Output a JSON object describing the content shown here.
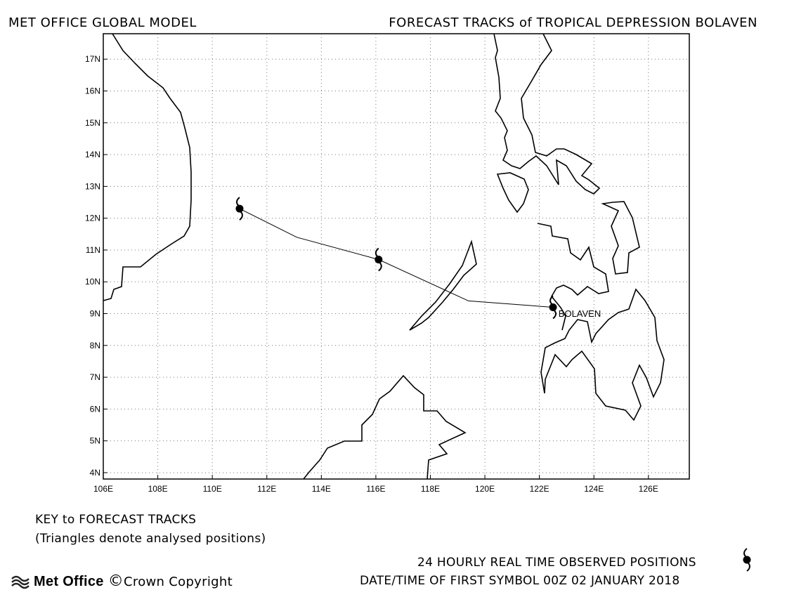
{
  "header": {
    "left": "MET OFFICE GLOBAL MODEL",
    "right": "FORECAST TRACKS of TROPICAL DEPRESSION BOLAVEN"
  },
  "footer": {
    "key_title": "KEY to FORECAST TRACKS",
    "key_note": "(Triangles denote analysed positions)",
    "observed_label": "24 HOURLY REAL TIME OBSERVED POSITIONS",
    "date_label": "DATE/TIME OF FIRST SYMBOL 00Z 02 JANUARY 2018",
    "logo_text": "Met Office",
    "copyright_symbol": "©",
    "copyright_text": "Crown Copyright"
  },
  "chart_data": {
    "type": "line",
    "xlim": [
      106,
      127.5
    ],
    "ylim": [
      3.8,
      17.8
    ],
    "x_ticks": [
      106,
      108,
      110,
      112,
      114,
      116,
      118,
      120,
      122,
      124,
      126
    ],
    "y_ticks": [
      4,
      5,
      6,
      7,
      8,
      9,
      10,
      11,
      12,
      13,
      14,
      15,
      16,
      17
    ],
    "x_tick_labels": [
      "106E",
      "108E",
      "110E",
      "112E",
      "114E",
      "116E",
      "118E",
      "120E",
      "122E",
      "124E",
      "126E"
    ],
    "y_tick_labels": [
      "4N",
      "5N",
      "6N",
      "7N",
      "8N",
      "9N",
      "10N",
      "11N",
      "12N",
      "13N",
      "14N",
      "15N",
      "16N",
      "17N"
    ],
    "grid": "dotted",
    "series": [
      {
        "name": "BOLAVEN",
        "track": [
          [
            122.5,
            9.2
          ],
          [
            119.4,
            9.4
          ],
          [
            116.1,
            10.7
          ],
          [
            113.1,
            11.4
          ],
          [
            111.0,
            12.3
          ]
        ],
        "observed_positions": [
          [
            122.5,
            9.2
          ],
          [
            116.1,
            10.7
          ],
          [
            111.0,
            12.3
          ]
        ]
      }
    ],
    "storm_label": "BOLAVEN",
    "storm_label_pos": [
      122.7,
      8.9
    ]
  }
}
